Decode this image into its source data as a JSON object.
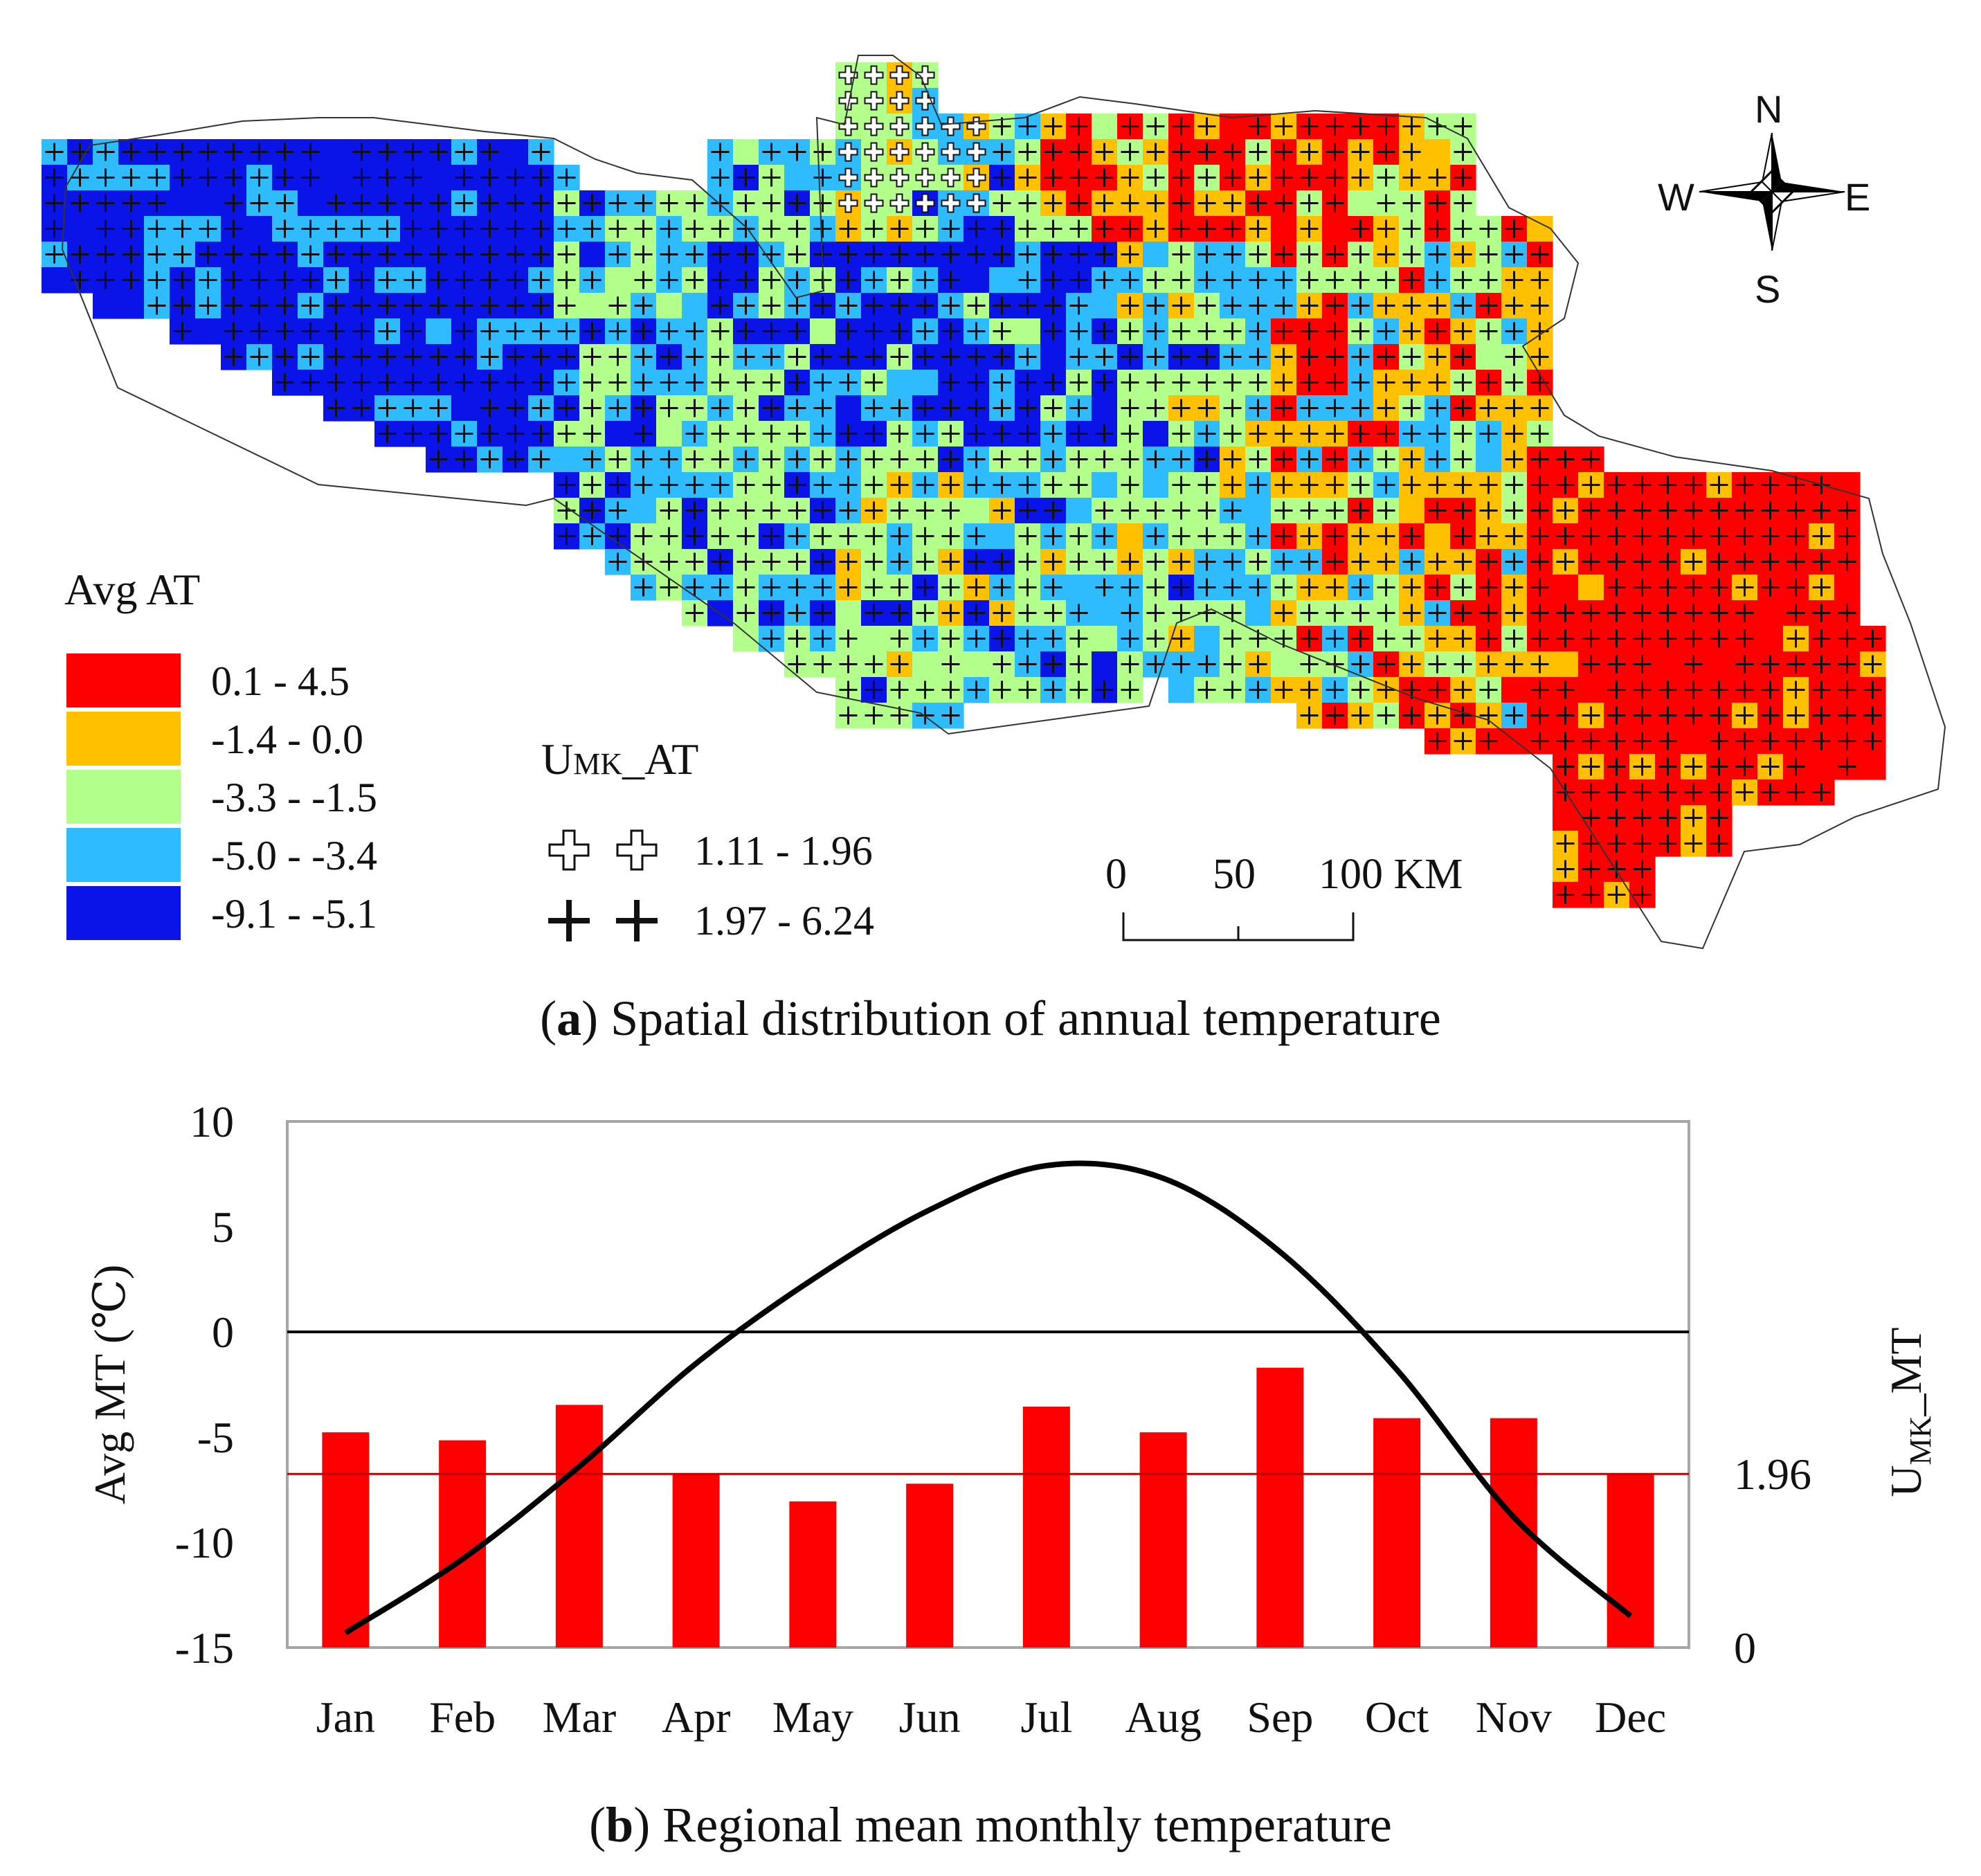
{
  "map": {
    "legend_title": "Avg AT",
    "legend": [
      {
        "label": "0.1 - 4.5",
        "color": "#ff0000"
      },
      {
        "label": "-1.4 - 0.0",
        "color": "#ffc000"
      },
      {
        "label": "-3.3 - -1.5",
        "color": "#b3ff8c"
      },
      {
        "label": "-5.0 - -3.4",
        "color": "#2fbcff"
      },
      {
        "label": "-9.1 - -5.1",
        "color": "#0a14e6"
      }
    ],
    "umk_title_main": "U",
    "umk_title_sub": "MK",
    "umk_title_tail": "_AT",
    "umk_ranges": [
      {
        "label": "1.11 - 1.96",
        "symbol": "hollow-plus"
      },
      {
        "label": "1.97 - 6.24",
        "symbol": "solid-plus"
      }
    ],
    "scale_labels": [
      "0",
      "50",
      "100 KM"
    ],
    "compass": {
      "n": "N",
      "s": "S",
      "e": "E",
      "w": "W"
    },
    "caption_letter": "a",
    "caption_text": "Spatial distribution of annual temperature"
  },
  "chart_data": {
    "type": "bar",
    "title": "Regional mean monthly temperature",
    "caption_letter": "b",
    "categories": [
      "Jan",
      "Feb",
      "Mar",
      "Apr",
      "May",
      "Jun",
      "Jul",
      "Aug",
      "Sep",
      "Oct",
      "Nov",
      "Dec"
    ],
    "series": [
      {
        "name": "Avg MT",
        "type": "line",
        "axis": "left",
        "color": "#000000",
        "values": [
          -14.3,
          -10.8,
          -6.4,
          -1.5,
          2.5,
          5.8,
          7.9,
          7.3,
          3.8,
          -1.8,
          -8.8,
          -13.5
        ]
      },
      {
        "name": "UMK_MT",
        "type": "bar",
        "axis": "right",
        "color": "#ff0000",
        "values": [
          2.43,
          2.34,
          2.74,
          1.96,
          1.65,
          1.85,
          2.72,
          2.43,
          3.16,
          2.59,
          2.59,
          1.96
        ]
      }
    ],
    "ylabel": "Avg MT (℃)",
    "y2label_main": "U",
    "y2label_sub": "MK",
    "y2label_tail": "_MT",
    "ylim": [
      -15,
      10
    ],
    "yticks": [
      "10",
      "5",
      "0",
      "-5",
      "-10",
      "-15"
    ],
    "y2lim": [
      0,
      5.94
    ],
    "y2ticks": [
      "1.96",
      "0"
    ],
    "threshold_label": "1.96",
    "threshold_color": "#c00000",
    "grid": false
  }
}
